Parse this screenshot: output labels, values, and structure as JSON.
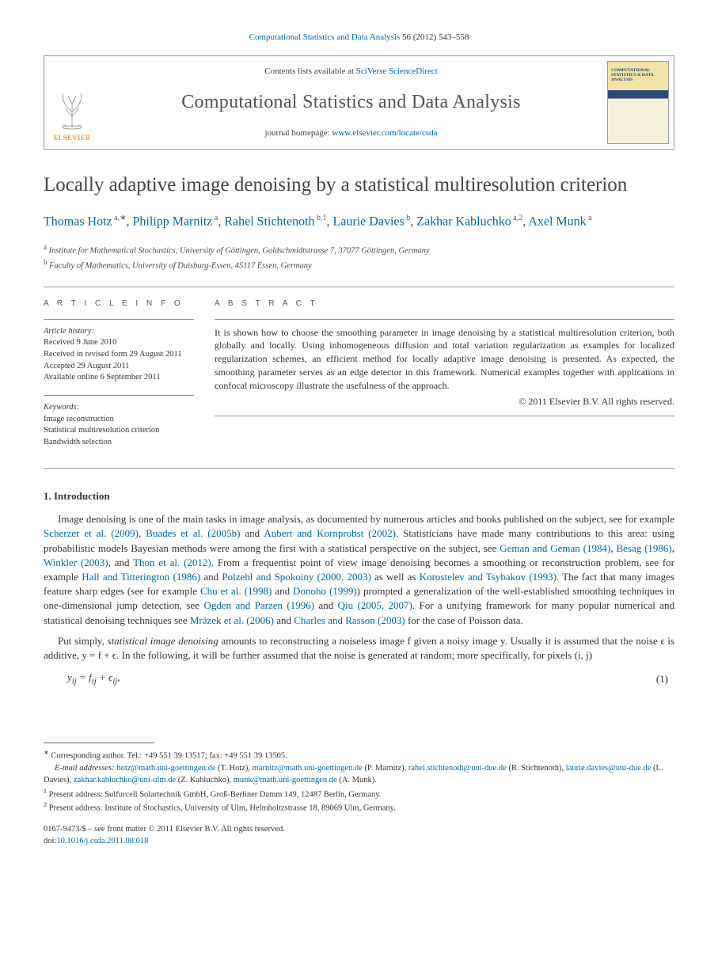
{
  "citation": {
    "journal": "Computational Statistics and Data Analysis",
    "ref": "56 (2012) 543–558"
  },
  "masthead": {
    "contents_prefix": "Contents lists available at",
    "contents_link_text": "SciVerse ScienceDirect",
    "journal_title": "Computational Statistics and Data Analysis",
    "homepage_prefix": "journal homepage:",
    "homepage_link_text": "www.elsevier.com/locate/csda",
    "elsevier_label": "ELSEVIER",
    "cover_text": "COMPUTATIONAL STATISTICS & DATA ANALYSIS"
  },
  "title": "Locally adaptive image denoising by a statistical multiresolution criterion",
  "authors_html": [
    {
      "name": "Thomas Hotz",
      "sup": "a,∗"
    },
    {
      "name": "Philipp Marnitz",
      "sup": "a"
    },
    {
      "name": "Rahel Stichtenoth",
      "sup": "b,1"
    },
    {
      "name": "Laurie Davies",
      "sup": "b"
    },
    {
      "name": "Zakhar Kabluchko",
      "sup": "a,2"
    },
    {
      "name": "Axel Munk",
      "sup": "a"
    }
  ],
  "affiliations": [
    {
      "sup": "a",
      "text": "Institute for Mathematical Stochastics, University of Göttingen, Goldschmidtstrasse 7, 37077 Göttingen, Germany"
    },
    {
      "sup": "b",
      "text": "Faculty of Mathematics, University of Duisburg-Essen, 45117 Essen, Germany"
    }
  ],
  "info": {
    "heading": "A R T I C L E   I N F O",
    "history_label": "Article history:",
    "history": [
      "Received 9 June 2010",
      "Received in revised form 29 August 2011",
      "Accepted 29 August 2011",
      "Available online 6 September 2011"
    ],
    "keywords_label": "Keywords:",
    "keywords": [
      "Image reconstruction",
      "Statistical multiresolution criterion",
      "Bandwidth selection"
    ]
  },
  "abstract": {
    "heading": "A B S T R A C T",
    "text": "It is shown how to choose the smoothing parameter in image denoising by a statistical multiresolution criterion, both globally and locally. Using inhomogeneous diffusion and total variation regularization as examples for localized regularization schemes, an efficient method for locally adaptive image denoising is presented. As expected, the smoothing parameter serves as an edge detector in this framework. Numerical examples together with applications in confocal microscopy illustrate the usefulness of the approach.",
    "copyright": "© 2011 Elsevier B.V. All rights reserved."
  },
  "section1": {
    "heading": "1. Introduction",
    "para1_parts": [
      {
        "t": "Image denoising is one of the main tasks in image analysis, as documented by numerous articles and books published on the subject, see for example "
      },
      {
        "l": "Scherzer et al. (2009)"
      },
      {
        "t": ", "
      },
      {
        "l": "Buades et al. (2005b)"
      },
      {
        "t": " and "
      },
      {
        "l": "Aubert and Kornprobst (2002)"
      },
      {
        "t": ". Statisticians have made many contributions to this area: using probabilistic models Bayesian methods were among the first with a statistical perspective on the subject, see "
      },
      {
        "l": "Geman and Geman (1984)"
      },
      {
        "t": ", "
      },
      {
        "l": "Besag (1986)"
      },
      {
        "t": ", "
      },
      {
        "l": "Winkler (2003)"
      },
      {
        "t": ", and "
      },
      {
        "l": "Thon et al. (2012)"
      },
      {
        "t": ". From a frequentist point of view image denoising becomes a smoothing or reconstruction problem, see for example "
      },
      {
        "l": "Hall and Titterington (1986)"
      },
      {
        "t": " and "
      },
      {
        "l": "Polzehl and Spokoiny (2000, 2003)"
      },
      {
        "t": " as well as "
      },
      {
        "l": "Korostelev and Tsybakov (1993)"
      },
      {
        "t": ". The fact that many images feature sharp edges (see for example "
      },
      {
        "l": "Chu et al. (1998)"
      },
      {
        "t": " and "
      },
      {
        "l": "Donoho (1999)"
      },
      {
        "t": ") prompted a generalization of the well-established smoothing techniques in one-dimensional jump detection, see "
      },
      {
        "l": "Ogden and Parzen (1996)"
      },
      {
        "t": " and "
      },
      {
        "l": "Qiu (2005, 2007)"
      },
      {
        "t": ". For a unifying framework for many popular numerical and statistical denoising techniques see "
      },
      {
        "l": "Mrázek et al. (2006)"
      },
      {
        "t": " and "
      },
      {
        "l": "Charles and Rasson (2003)"
      },
      {
        "t": " for the case of Poisson data."
      }
    ],
    "para2": "Put simply, statistical image denoising amounts to reconstructing a noiseless image f given a noisy image y. Usually it is assumed that the noise ϵ is additive, y = f + ϵ. In the following, it will be further assumed that the noise is generated at random; more specifically, for pixels (i, j)",
    "equation": "y_{ij} = f_{ij} + ϵ_{ij},",
    "eq_num": "(1)"
  },
  "footnotes": {
    "corr": "Corresponding author. Tel.: +49 551 39 13517; fax: +49 551 39 13505.",
    "email_label": "E-mail addresses:",
    "emails": [
      {
        "addr": "hotz@math.uni-goettingen.de",
        "who": "(T. Hotz)"
      },
      {
        "addr": "marnitz@math.uni-goettingen.de",
        "who": "(P. Marnitz)"
      },
      {
        "addr": "rahel.stichtenoth@uni-due.de",
        "who": "(R. Stichtenoth)"
      },
      {
        "addr": "laurie.davies@uni-due.de",
        "who": "(L. Davies)"
      },
      {
        "addr": "zakhar.kabluchko@uni-ulm.de",
        "who": "(Z. Kabluchko)"
      },
      {
        "addr": "munk@math.uni-goettingen.de",
        "who": "(A. Munk)"
      }
    ],
    "n1": "Present address: Sulfurcell Solartechnik GmbH, Groß-Berliner Damm 149, 12487 Berlin, Germany.",
    "n2": "Present address: Institute of Stochastics, University of Ulm, Helmholtzstrasse 18, 89069 Ulm, Germany."
  },
  "footer": {
    "issn_line": "0167-9473/$ – see front matter © 2011 Elsevier B.V. All rights reserved.",
    "doi_label": "doi:",
    "doi": "10.1016/j.csda.2011.08.018"
  },
  "colors": {
    "link": "#0066a8",
    "elsevier_orange": "#e67300",
    "text": "#333333",
    "rule": "#999999"
  }
}
